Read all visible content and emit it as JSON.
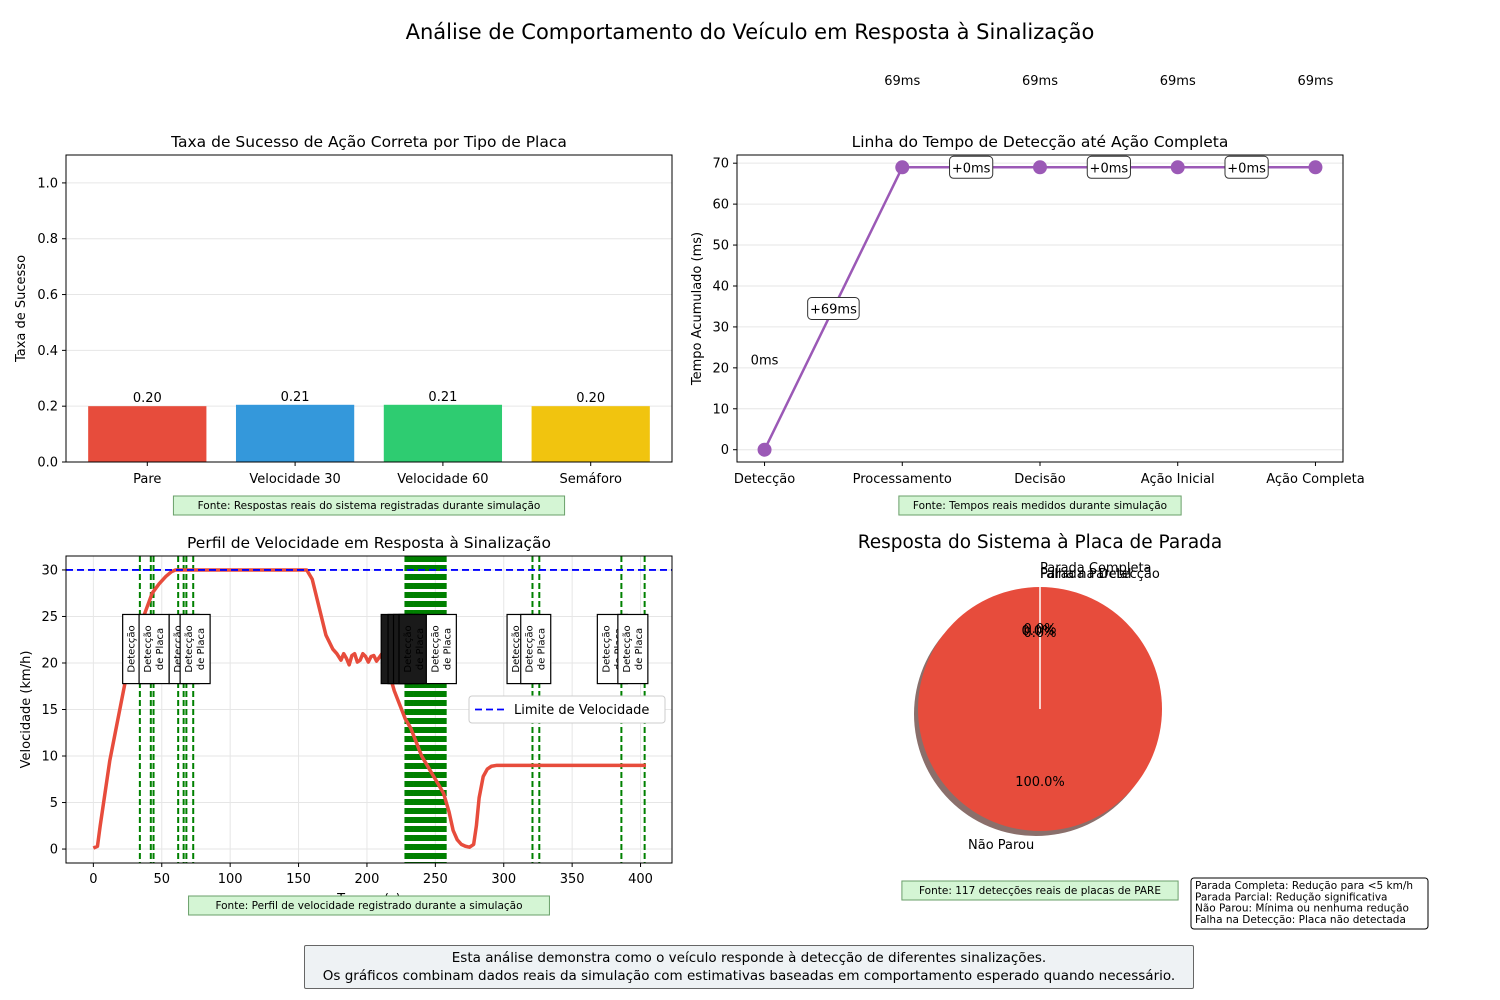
{
  "suptitle": "Análise de Comportamento do Veículo em Resposta à Sinalização",
  "colors": {
    "red": "#e74c3c",
    "blue": "#3498db",
    "green": "#2ecc71",
    "yellow": "#f1c40f",
    "purple": "#9b59b6",
    "limit": "#0000ff",
    "detect": "#008000",
    "source_bg": "#d4f5d4",
    "source_border": "#6a9f6a"
  },
  "chart_data": [
    {
      "id": "success",
      "type": "bar",
      "title": "Taxa de Sucesso de Ação Correta por Tipo de Placa",
      "xlabel": "",
      "ylabel": "Taxa de Sucesso",
      "categories": [
        "Pare",
        "Velocidade 30",
        "Velocidade 60",
        "Semáforo"
      ],
      "values": [
        0.2,
        0.205,
        0.205,
        0.2
      ],
      "value_labels": [
        "0.20",
        "0.21",
        "0.21",
        "0.20"
      ],
      "bar_colors": [
        "#e74c3c",
        "#3498db",
        "#2ecc71",
        "#f1c40f"
      ],
      "ylim": [
        0,
        1.1
      ],
      "yticks": [
        0.0,
        0.2,
        0.4,
        0.6,
        0.8,
        1.0
      ],
      "ytick_labels": [
        "0.0",
        "0.2",
        "0.4",
        "0.6",
        "0.8",
        "1.0"
      ],
      "grid": "y",
      "source": "Fonte: Respostas reais do sistema registradas durante simulação"
    },
    {
      "id": "timeline",
      "type": "line",
      "title": "Linha do Tempo de Detecção até Ação Completa",
      "ylabel": "Tempo Acumulado (ms)",
      "categories": [
        "Detecção",
        "Processamento",
        "Decisão",
        "Ação Inicial",
        "Ação Completa"
      ],
      "values": [
        0,
        69,
        69,
        69,
        69
      ],
      "point_labels": [
        "0ms",
        "69ms",
        "69ms",
        "69ms",
        "69ms"
      ],
      "step_labels": [
        "+69ms",
        "+0ms",
        "+0ms",
        "+0ms"
      ],
      "ylim": [
        -3,
        72
      ],
      "yticks": [
        0,
        10,
        20,
        30,
        40,
        50,
        60,
        70
      ],
      "grid": "y",
      "source": "Fonte: Tempos reais medidos durante simulação"
    },
    {
      "id": "speed",
      "type": "line",
      "title": "Perfil de Velocidade em Resposta à Sinalização",
      "xlabel": "Tempo (s)",
      "ylabel": "Velocidade (km/h)",
      "xlim": [
        -20,
        423
      ],
      "ylim": [
        -1.5,
        31.5
      ],
      "xticks": [
        0,
        50,
        100,
        150,
        200,
        250,
        300,
        350,
        400
      ],
      "yticks": [
        0,
        5,
        10,
        15,
        20,
        25,
        30
      ],
      "grid": "both",
      "speed_limit": 30,
      "legend": "Limite de Velocidade",
      "legend_position": "center-right",
      "x": [
        0,
        3,
        5,
        8,
        12,
        16,
        20,
        24,
        28,
        33,
        38,
        43,
        48,
        53,
        57,
        60,
        63,
        66,
        70,
        80,
        100,
        120,
        140,
        150,
        156,
        160,
        165,
        170,
        175,
        178,
        181,
        183,
        185,
        187,
        189,
        191,
        193,
        195,
        197,
        199,
        201,
        203,
        205,
        207,
        209,
        211,
        213,
        216,
        220,
        224,
        228,
        232,
        236,
        240,
        244,
        248,
        252,
        256,
        260,
        263,
        266,
        269,
        272,
        275,
        278,
        280,
        282,
        285,
        288,
        291,
        295,
        300,
        310,
        320,
        340,
        360,
        380,
        404
      ],
      "y": [
        0.1,
        0.3,
        2.5,
        5.5,
        9.5,
        12.5,
        15.5,
        18.5,
        21,
        23.5,
        25.5,
        27.5,
        28.5,
        29.3,
        29.8,
        30,
        30,
        30,
        30,
        30,
        30,
        30,
        30,
        30,
        30,
        29,
        26,
        23,
        21.5,
        21,
        20.3,
        21,
        20.5,
        19.8,
        20.8,
        21,
        20.1,
        20.3,
        21,
        20.7,
        20.1,
        20.7,
        20.8,
        20.2,
        20.6,
        21,
        20.5,
        19,
        17,
        15.5,
        14,
        13,
        11.5,
        10,
        9,
        8,
        7,
        6,
        4,
        2,
        1,
        0.5,
        0.3,
        0.2,
        0.5,
        2.5,
        5.5,
        7.8,
        8.6,
        8.9,
        9,
        9,
        9,
        9,
        9,
        9,
        9,
        9
      ],
      "detection_lines": [
        34,
        42,
        44,
        62,
        66,
        68,
        73,
        229,
        231,
        233,
        235,
        237,
        239,
        241,
        243,
        245,
        247,
        249,
        251,
        253,
        255,
        257,
        321,
        326,
        386,
        403
      ],
      "detection_label": "Detecção de Placa",
      "source": "Fonte: Perfil de velocidade registrado durante a simulação"
    },
    {
      "id": "stop",
      "type": "pie",
      "title": "Resposta do Sistema à Placa de Parada",
      "labels": [
        "Parada Completa",
        "Parada Parcial",
        "Não Parou",
        "Falha na Detecção"
      ],
      "values": [
        0.0,
        0.0,
        100.0,
        0.0
      ],
      "pct_labels": [
        "0.0%",
        "0.0%",
        "100.0%",
        "0.0%"
      ],
      "slice_colors": [
        "#2ecc71",
        "#f1c40f",
        "#e74c3c",
        "#95a5a6"
      ],
      "source": "Fonte: 117 detecções reais de placas de PARE",
      "legend_lines": [
        "Parada Completa: Redução para <5 km/h",
        "Parada Parcial: Redução significativa",
        "Não Parou: Mínima ou nenhuma redução",
        "Falha na Detecção: Placa não detectada"
      ]
    }
  ],
  "footer": {
    "line1": "Esta análise demonstra como o veículo responde à detecção de diferentes sinalizações.",
    "line2": "Os gráficos combinam dados reais da simulação com estimativas baseadas em comportamento esperado quando necessário."
  }
}
